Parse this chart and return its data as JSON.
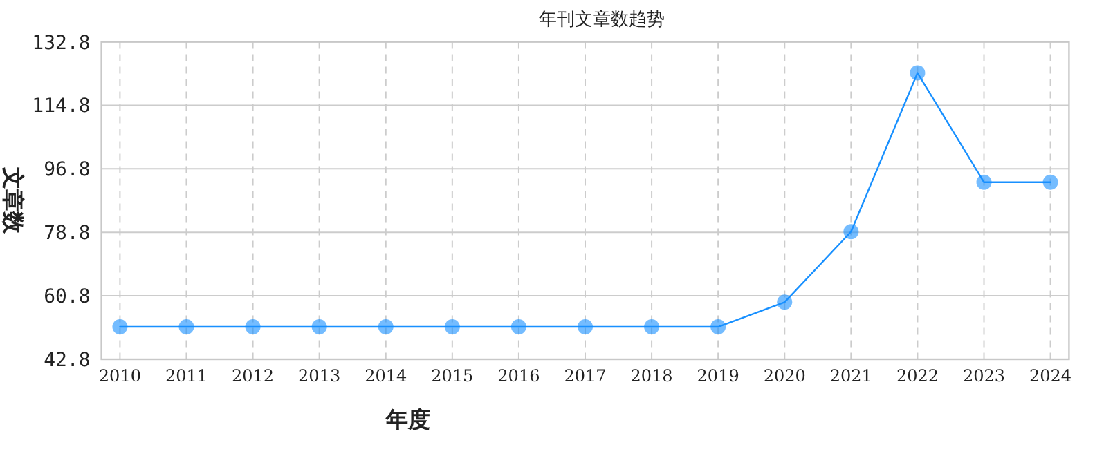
{
  "chart_data": {
    "type": "line",
    "title": "年刊文章数趋势",
    "xlabel": "年度",
    "ylabel": "文章数",
    "categories": [
      "2010",
      "2011",
      "2012",
      "2013",
      "2014",
      "2015",
      "2016",
      "2017",
      "2018",
      "2019",
      "2020",
      "2021",
      "2022",
      "2023",
      "2024"
    ],
    "values": [
      52,
      52,
      52,
      52,
      52,
      52,
      52,
      52,
      52,
      52,
      59,
      79,
      124,
      93,
      93
    ],
    "color": "#1890ff",
    "ylim": [
      42.8,
      132.8
    ],
    "yticks": [
      42.8,
      60.8,
      78.8,
      96.8,
      114.8,
      132.8
    ],
    "grid": true,
    "marker": "circle",
    "line_style": "solid"
  }
}
